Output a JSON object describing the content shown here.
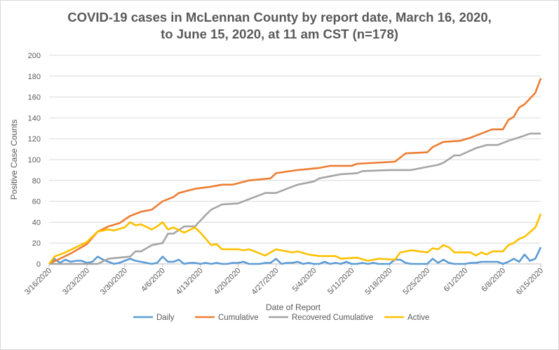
{
  "chart_data": {
    "type": "line",
    "title_line1": "COVID-19 cases in McLennan County by report date, March 16, 2020,",
    "title_line2": "to June 15, 2020, at 11 am CST (n=178)",
    "xlabel": "Date of Report",
    "ylabel": "Positive Case Counts",
    "ylim": [
      0,
      200
    ],
    "yticks": [
      0,
      20,
      40,
      60,
      80,
      100,
      120,
      140,
      160,
      180,
      200
    ],
    "x_days_range": [
      0,
      91
    ],
    "xtick_days": [
      0,
      7,
      14,
      21,
      28,
      35,
      42,
      49,
      56,
      63,
      70,
      77,
      84,
      91
    ],
    "xtick_labels": [
      "3/16/2020",
      "3/23/2020",
      "3/30/2020",
      "4/6/2020",
      "4/13/2020",
      "4/20/2020",
      "4/27/2020",
      "5/4/2020",
      "5/11/2020",
      "5/18/2020",
      "5/25/2020",
      "6/1/2020",
      "6/8/2020",
      "6/15/2020"
    ],
    "grid": true,
    "legend_position": "bottom",
    "series": [
      {
        "name": "Daily",
        "color": "#5B9BD5",
        "points": [
          [
            0,
            0
          ],
          [
            1,
            5
          ],
          [
            2,
            1
          ],
          [
            3,
            4
          ],
          [
            4,
            2
          ],
          [
            5,
            3
          ],
          [
            6,
            3
          ],
          [
            7,
            1
          ],
          [
            8,
            2
          ],
          [
            9,
            7
          ],
          [
            10,
            4
          ],
          [
            11,
            2
          ],
          [
            12,
            0
          ],
          [
            13,
            1
          ],
          [
            14,
            3
          ],
          [
            15,
            5
          ],
          [
            16,
            3
          ],
          [
            17,
            2
          ],
          [
            18,
            1
          ],
          [
            19,
            0
          ],
          [
            20,
            1
          ],
          [
            21,
            7
          ],
          [
            22,
            2
          ],
          [
            23,
            2
          ],
          [
            24,
            4
          ],
          [
            25,
            0
          ],
          [
            26,
            1
          ],
          [
            27,
            1
          ],
          [
            28,
            0
          ],
          [
            29,
            1
          ],
          [
            30,
            0
          ],
          [
            31,
            1
          ],
          [
            32,
            0
          ],
          [
            33,
            0
          ],
          [
            34,
            1
          ],
          [
            35,
            1
          ],
          [
            36,
            2
          ],
          [
            37,
            0
          ],
          [
            38,
            0
          ],
          [
            39,
            0
          ],
          [
            40,
            1
          ],
          [
            41,
            1
          ],
          [
            42,
            5
          ],
          [
            43,
            0
          ],
          [
            44,
            1
          ],
          [
            45,
            1
          ],
          [
            46,
            2
          ],
          [
            47,
            0
          ],
          [
            48,
            1
          ],
          [
            49,
            0
          ],
          [
            50,
            0
          ],
          [
            51,
            2
          ],
          [
            52,
            0
          ],
          [
            53,
            1
          ],
          [
            54,
            0
          ],
          [
            55,
            2
          ],
          [
            56,
            0
          ],
          [
            57,
            0
          ],
          [
            58,
            1
          ],
          [
            59,
            0
          ],
          [
            60,
            1
          ],
          [
            61,
            0
          ],
          [
            62,
            0
          ],
          [
            63,
            0
          ],
          [
            64,
            4
          ],
          [
            65,
            4
          ],
          [
            66,
            1
          ],
          [
            67,
            0
          ],
          [
            68,
            0
          ],
          [
            69,
            0
          ],
          [
            70,
            0
          ],
          [
            71,
            5
          ],
          [
            72,
            1
          ],
          [
            73,
            4
          ],
          [
            74,
            1
          ],
          [
            75,
            0
          ],
          [
            76,
            0
          ],
          [
            77,
            0
          ],
          [
            78,
            1
          ],
          [
            79,
            1
          ],
          [
            80,
            2
          ],
          [
            81,
            2
          ],
          [
            82,
            2
          ],
          [
            83,
            2
          ],
          [
            84,
            0
          ],
          [
            85,
            2
          ],
          [
            86,
            5
          ],
          [
            87,
            2
          ],
          [
            88,
            9
          ],
          [
            89,
            3
          ],
          [
            90,
            5
          ],
          [
            91,
            16
          ]
        ]
      },
      {
        "name": "Cumulative",
        "color": "#ED7D31",
        "points": [
          [
            0,
            0
          ],
          [
            2,
            5
          ],
          [
            4,
            10
          ],
          [
            7,
            19
          ],
          [
            9,
            31
          ],
          [
            11,
            36
          ],
          [
            13,
            39
          ],
          [
            15,
            46
          ],
          [
            17,
            50
          ],
          [
            19,
            52
          ],
          [
            21,
            60
          ],
          [
            23,
            64
          ],
          [
            24,
            68
          ],
          [
            27,
            72
          ],
          [
            30,
            74
          ],
          [
            32,
            76
          ],
          [
            34,
            76
          ],
          [
            37,
            80
          ],
          [
            41,
            82
          ],
          [
            42,
            87
          ],
          [
            46,
            90
          ],
          [
            50,
            92
          ],
          [
            52,
            94
          ],
          [
            56,
            94
          ],
          [
            57,
            96
          ],
          [
            64,
            98
          ],
          [
            66,
            106
          ],
          [
            70,
            107
          ],
          [
            71,
            112
          ],
          [
            73,
            117
          ],
          [
            76,
            118
          ],
          [
            78,
            121
          ],
          [
            82,
            129
          ],
          [
            84,
            129
          ],
          [
            85,
            138
          ],
          [
            86,
            141
          ],
          [
            87,
            150
          ],
          [
            88,
            153
          ],
          [
            90,
            164
          ],
          [
            91,
            178
          ]
        ]
      },
      {
        "name": "Recovered Cumulative",
        "color": "#A5A5A5",
        "points": [
          [
            0,
            0
          ],
          [
            9,
            0
          ],
          [
            11,
            5
          ],
          [
            15,
            7
          ],
          [
            16,
            12
          ],
          [
            17,
            12
          ],
          [
            19,
            18
          ],
          [
            21,
            20
          ],
          [
            22,
            29
          ],
          [
            23,
            29
          ],
          [
            25,
            36
          ],
          [
            27,
            36
          ],
          [
            29,
            47
          ],
          [
            30,
            52
          ],
          [
            32,
            57
          ],
          [
            35,
            58
          ],
          [
            37,
            62
          ],
          [
            39,
            66
          ],
          [
            40,
            68
          ],
          [
            42,
            68
          ],
          [
            44,
            72
          ],
          [
            46,
            76
          ],
          [
            47,
            77
          ],
          [
            49,
            79
          ],
          [
            50,
            82
          ],
          [
            52,
            84
          ],
          [
            54,
            86
          ],
          [
            57,
            87
          ],
          [
            58,
            89
          ],
          [
            63,
            90
          ],
          [
            67,
            90
          ],
          [
            70,
            93
          ],
          [
            72,
            95
          ],
          [
            73,
            97
          ],
          [
            75,
            104
          ],
          [
            76,
            104
          ],
          [
            79,
            111
          ],
          [
            81,
            114
          ],
          [
            83,
            114
          ],
          [
            84,
            116
          ],
          [
            85,
            118
          ],
          [
            88,
            123
          ],
          [
            89,
            125
          ],
          [
            91,
            125
          ]
        ]
      },
      {
        "name": "Active",
        "color": "#FFC000",
        "points": [
          [
            0,
            0
          ],
          [
            1,
            7
          ],
          [
            3,
            11
          ],
          [
            5,
            16
          ],
          [
            7,
            21
          ],
          [
            9,
            31
          ],
          [
            11,
            33
          ],
          [
            12,
            32
          ],
          [
            14,
            35
          ],
          [
            15,
            40
          ],
          [
            16,
            37
          ],
          [
            17,
            38
          ],
          [
            19,
            33
          ],
          [
            20,
            36
          ],
          [
            21,
            40
          ],
          [
            22,
            33
          ],
          [
            23,
            35
          ],
          [
            25,
            30
          ],
          [
            27,
            35
          ],
          [
            28,
            30
          ],
          [
            30,
            18
          ],
          [
            31,
            19
          ],
          [
            32,
            14
          ],
          [
            35,
            14
          ],
          [
            36,
            13
          ],
          [
            37,
            14
          ],
          [
            39,
            10
          ],
          [
            40,
            8
          ],
          [
            42,
            14
          ],
          [
            45,
            11
          ],
          [
            46,
            12
          ],
          [
            48,
            9
          ],
          [
            50,
            7.5
          ],
          [
            53,
            7.5
          ],
          [
            54,
            5
          ],
          [
            57,
            6
          ],
          [
            59,
            3
          ],
          [
            60,
            4
          ],
          [
            61,
            5
          ],
          [
            64,
            4
          ],
          [
            65,
            11
          ],
          [
            67,
            13
          ],
          [
            70,
            11
          ],
          [
            71,
            15
          ],
          [
            72,
            14
          ],
          [
            73,
            18
          ],
          [
            74,
            16
          ],
          [
            75,
            11
          ],
          [
            78,
            11
          ],
          [
            79,
            8
          ],
          [
            80,
            11
          ],
          [
            81,
            9
          ],
          [
            82,
            12
          ],
          [
            84,
            12
          ],
          [
            85,
            18
          ],
          [
            86,
            20
          ],
          [
            87,
            24
          ],
          [
            88,
            26
          ],
          [
            90,
            35
          ],
          [
            91,
            48
          ]
        ]
      }
    ]
  }
}
